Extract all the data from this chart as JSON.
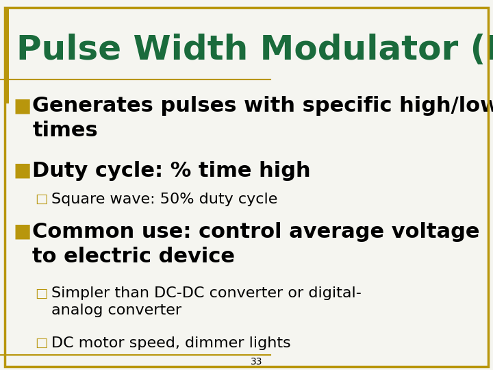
{
  "title": "Pulse Width Modulator (PWM)",
  "title_color": "#1a6b3c",
  "title_fontsize": 36,
  "background_color": "#f5f5f0",
  "border_color": "#b8960c",
  "slide_number": "33",
  "bullet_color": "#b8960c",
  "text_color": "#000000",
  "bullet1": "Generates pulses with specific high/low\ntimes",
  "bullet2": "Duty cycle: % time high",
  "sub_bullet1": "Square wave: 50% duty cycle",
  "bullet3": "Common use: control average voltage\nto electric device",
  "sub_bullet2": "Simpler than DC-DC converter or digital-\nanalog converter",
  "sub_bullet3": "DC motor speed, dimmer lights",
  "main_bullet_fontsize": 22,
  "sub_bullet_fontsize": 16,
  "main_bullet_symbol": "■",
  "sub_bullet_symbol": "□"
}
